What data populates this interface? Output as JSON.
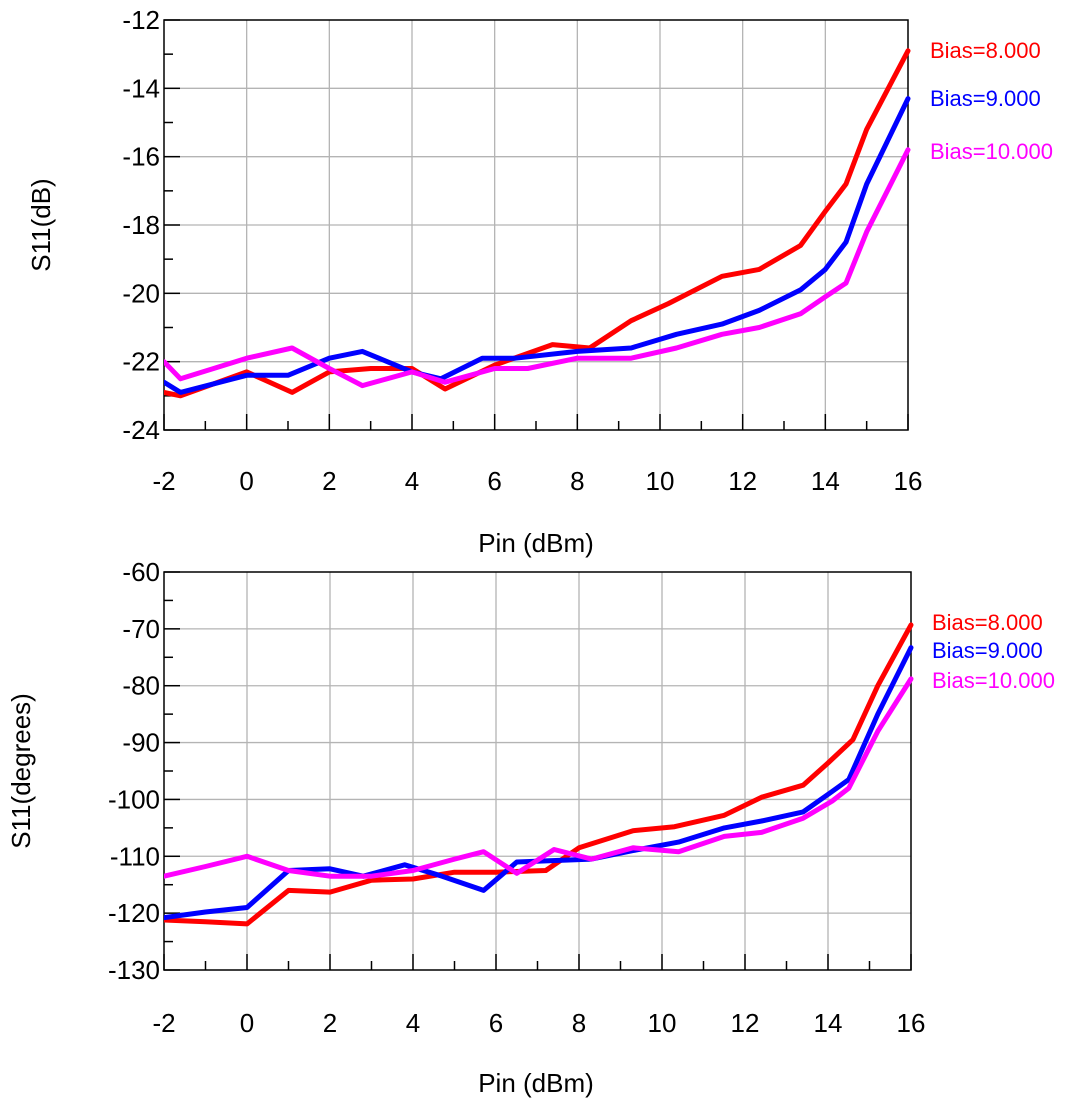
{
  "chart_data": [
    {
      "type": "line",
      "xlabel": "Pin (dBm)",
      "ylabel": "S11(dB)",
      "xlim": [
        -2,
        16
      ],
      "ylim": [
        -24,
        -12
      ],
      "x_ticks": [
        "-2",
        "0",
        "2",
        "4",
        "6",
        "8",
        "10",
        "12",
        "14",
        "16"
      ],
      "y_ticks": [
        "-12",
        "-14",
        "-16",
        "-18",
        "-20",
        "-22",
        "-24"
      ],
      "grid": true,
      "legend_position": "right",
      "series": [
        {
          "name": "Bias=8.000",
          "color": "#ff0000",
          "x": [
            -2,
            -1.6,
            0,
            1.1,
            2,
            3,
            4,
            4.8,
            6,
            7.4,
            8.3,
            9.3,
            10.2,
            11.5,
            12.4,
            13.4,
            14,
            14.5,
            15,
            16
          ],
          "y": [
            -22.9,
            -23,
            -22.3,
            -22.9,
            -22.3,
            -22.2,
            -22.2,
            -22.8,
            -22.1,
            -21.5,
            -21.6,
            -20.8,
            -20.3,
            -19.5,
            -19.3,
            -18.6,
            -17.6,
            -16.8,
            -15.2,
            -12.9
          ]
        },
        {
          "name": "Bias=9.000",
          "color": "#0000ff",
          "x": [
            -2,
            -1.6,
            0,
            1,
            2,
            2.8,
            4,
            4.7,
            5.7,
            6.5,
            8,
            9.3,
            10.4,
            11.5,
            12.4,
            13.4,
            14,
            14.5,
            15,
            16
          ],
          "y": [
            -22.6,
            -22.9,
            -22.4,
            -22.4,
            -21.9,
            -21.7,
            -22.3,
            -22.5,
            -21.9,
            -21.9,
            -21.7,
            -21.6,
            -21.2,
            -20.9,
            -20.5,
            -19.9,
            -19.3,
            -18.5,
            -16.8,
            -14.3
          ]
        },
        {
          "name": "Bias=10.000",
          "color": "#ff00ff",
          "x": [
            -2,
            -1.6,
            0,
            1.1,
            2,
            2.8,
            4,
            4.8,
            6,
            6.8,
            8,
            9.3,
            10.4,
            11.5,
            12.4,
            13.4,
            14,
            14.5,
            15,
            16
          ],
          "y": [
            -22,
            -22.5,
            -21.9,
            -21.6,
            -22.2,
            -22.7,
            -22.3,
            -22.6,
            -22.2,
            -22.2,
            -21.9,
            -21.9,
            -21.6,
            -21.2,
            -21,
            -20.6,
            -20.1,
            -19.7,
            -18.2,
            -15.8
          ]
        }
      ]
    },
    {
      "type": "line",
      "xlabel": "Pin (dBm)",
      "ylabel": "S11(degrees)",
      "xlim": [
        -2,
        16
      ],
      "ylim": [
        -130,
        -60
      ],
      "x_ticks": [
        "-2",
        "0",
        "2",
        "4",
        "6",
        "8",
        "10",
        "12",
        "14",
        "16"
      ],
      "y_ticks": [
        "-60",
        "-70",
        "-80",
        "-90",
        "-100",
        "-110",
        "-120",
        "-130"
      ],
      "grid": true,
      "legend_position": "right",
      "series": [
        {
          "name": "Bias=8.000",
          "color": "#ff0000",
          "x": [
            -2,
            -1,
            0,
            1,
            2,
            3,
            4,
            5,
            6,
            7.2,
            8,
            9.3,
            10.3,
            11.5,
            12.4,
            13.4,
            14,
            14.6,
            15.2,
            16
          ],
          "y": [
            -121.2,
            -121.5,
            -121.9,
            -116,
            -116.3,
            -114.2,
            -114,
            -112.8,
            -112.8,
            -112.5,
            -108.5,
            -105.5,
            -104.8,
            -102.8,
            -99.6,
            -97.5,
            -93.6,
            -89.5,
            -80,
            -69.3
          ]
        },
        {
          "name": "Bias=9.000",
          "color": "#0000ff",
          "x": [
            -2,
            -1,
            0,
            1,
            2,
            2.8,
            3.8,
            4.7,
            5.7,
            6.5,
            8.3,
            9.3,
            10.4,
            11.5,
            12.4,
            13.4,
            14.1,
            14.5,
            15.2,
            16
          ],
          "y": [
            -120.8,
            -119.8,
            -119,
            -112.5,
            -112.2,
            -113.5,
            -111.5,
            -113.5,
            -116,
            -111,
            -110.5,
            -109,
            -107.5,
            -105,
            -103.8,
            -102.2,
            -98.6,
            -96.5,
            -85,
            -73.3
          ]
        },
        {
          "name": "Bias=10.000",
          "color": "#ff00ff",
          "x": [
            -2,
            -1,
            0,
            1,
            2,
            3,
            4,
            5,
            5.7,
            6.5,
            7.4,
            8.3,
            9.3,
            10.4,
            11.5,
            12.4,
            13.4,
            14.1,
            14.5,
            15.2,
            16
          ],
          "y": [
            -113.5,
            -111.8,
            -110,
            -112.5,
            -113.5,
            -113.5,
            -112.5,
            -110.5,
            -109.2,
            -113,
            -108.8,
            -110.5,
            -108.5,
            -109.2,
            -106.5,
            -105.8,
            -103.3,
            -100.3,
            -98,
            -88,
            -78.8
          ]
        }
      ]
    }
  ]
}
